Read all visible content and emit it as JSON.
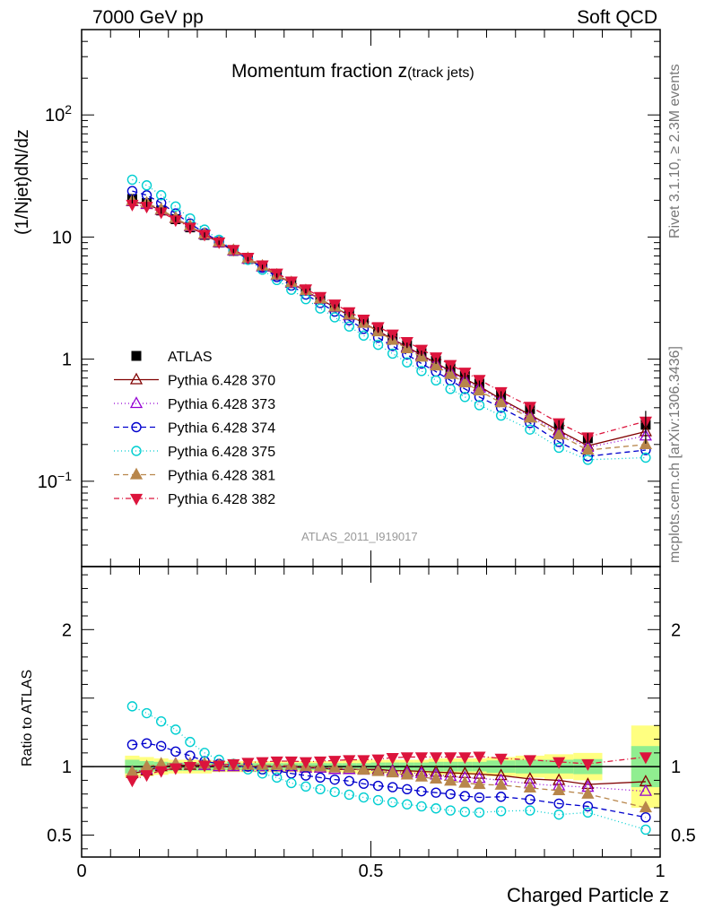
{
  "header": {
    "left": "7000 GeV pp",
    "right": "Soft QCD",
    "side_top": "Rivet 3.1.10, ≥ 2.3M events",
    "side_bottom": "mcplots.cern.ch [arXiv:1306.3436]"
  },
  "chart_data": [
    {
      "type": "line",
      "title": "Momentum fraction z",
      "title_sub": "(track jets)",
      "analysis_label": "ATLAS_2011_I919017",
      "ylabel": "(1/Njet)dN/dz",
      "yscale": "log",
      "ylim": [
        0.02,
        500
      ],
      "xlim": [
        0,
        1
      ],
      "ytick_labels": [
        "10^-1",
        "1",
        "10",
        "10^2"
      ],
      "legend_position": "left-middle",
      "x": [
        0.0875,
        0.1125,
        0.1375,
        0.1625,
        0.1875,
        0.2125,
        0.2375,
        0.2625,
        0.2875,
        0.3125,
        0.3375,
        0.3625,
        0.3875,
        0.4125,
        0.4375,
        0.4625,
        0.4875,
        0.5125,
        0.5375,
        0.5625,
        0.5875,
        0.6125,
        0.6375,
        0.6625,
        0.6875,
        0.725,
        0.775,
        0.825,
        0.875,
        0.975
      ],
      "series": [
        {
          "name": "ATLAS",
          "color": "#000000",
          "marker": "square-filled",
          "dash": "none",
          "values": [
            20.5,
            19.0,
            16.5,
            14.0,
            12.0,
            10.4,
            9.0,
            7.7,
            6.6,
            5.7,
            4.85,
            4.2,
            3.62,
            3.12,
            2.7,
            2.32,
            2.02,
            1.74,
            1.5,
            1.3,
            1.12,
            0.97,
            0.84,
            0.73,
            0.63,
            0.51,
            0.39,
            0.29,
            0.225,
            0.29
          ],
          "err_band": [
            0.08,
            0.07,
            0.06,
            0.05,
            0.05,
            0.05,
            0.04,
            0.04,
            0.04,
            0.04,
            0.04,
            0.04,
            0.04,
            0.04,
            0.04,
            0.05,
            0.05,
            0.05,
            0.05,
            0.05,
            0.05,
            0.06,
            0.06,
            0.06,
            0.06,
            0.07,
            0.08,
            0.09,
            0.1,
            0.3
          ]
        },
        {
          "name": "Pythia 6.428 370",
          "color": "#800000",
          "marker": "triangle-up-open",
          "dash": "none",
          "values": [
            19.5,
            18.5,
            16.6,
            14.2,
            12.2,
            10.5,
            9.0,
            7.7,
            6.6,
            5.7,
            4.85,
            4.2,
            3.6,
            3.1,
            2.65,
            2.28,
            1.98,
            1.7,
            1.46,
            1.26,
            1.08,
            0.93,
            0.8,
            0.69,
            0.6,
            0.47,
            0.35,
            0.26,
            0.195,
            0.255
          ]
        },
        {
          "name": "Pythia 6.428 373",
          "color": "#9400d3",
          "marker": "triangle-up-open",
          "dash": "1,3",
          "values": [
            19.6,
            18.6,
            16.7,
            14.3,
            12.2,
            10.5,
            9.0,
            7.7,
            6.6,
            5.7,
            4.85,
            4.2,
            3.6,
            3.1,
            2.65,
            2.27,
            1.97,
            1.69,
            1.45,
            1.24,
            1.06,
            0.91,
            0.78,
            0.67,
            0.58,
            0.46,
            0.34,
            0.25,
            0.19,
            0.235
          ]
        },
        {
          "name": "Pythia 6.428 374",
          "color": "#0000cd",
          "marker": "circle-open",
          "dash": "6,4",
          "values": [
            23.8,
            22.0,
            19.0,
            15.6,
            12.9,
            10.8,
            9.2,
            7.8,
            6.6,
            5.6,
            4.7,
            4.0,
            3.38,
            2.88,
            2.45,
            2.08,
            1.77,
            1.5,
            1.28,
            1.09,
            0.92,
            0.79,
            0.67,
            0.57,
            0.49,
            0.4,
            0.3,
            0.21,
            0.16,
            0.18
          ]
        },
        {
          "name": "Pythia 6.428 375",
          "color": "#00ced1",
          "marker": "circle-open",
          "dash": "1,3",
          "values": [
            29.5,
            26.5,
            22.0,
            17.8,
            14.2,
            11.5,
            9.5,
            7.85,
            6.5,
            5.4,
            4.45,
            3.7,
            3.1,
            2.6,
            2.2,
            1.85,
            1.56,
            1.31,
            1.11,
            0.94,
            0.8,
            0.67,
            0.57,
            0.49,
            0.42,
            0.345,
            0.265,
            0.188,
            0.15,
            0.156
          ]
        },
        {
          "name": "Pythia 6.428 381",
          "color": "#b8864b",
          "marker": "triangle-up-filled",
          "dash": "6,4",
          "values": [
            19.8,
            19.0,
            16.8,
            14.3,
            12.3,
            10.6,
            9.1,
            7.8,
            6.7,
            5.8,
            4.9,
            4.25,
            3.65,
            3.12,
            2.67,
            2.3,
            1.97,
            1.68,
            1.43,
            1.22,
            1.04,
            0.88,
            0.75,
            0.64,
            0.55,
            0.44,
            0.33,
            0.24,
            0.18,
            0.2
          ]
        },
        {
          "name": "Pythia 6.428 382",
          "color": "#dc143c",
          "marker": "triangle-down-filled",
          "dash": "6,3,1,3",
          "values": [
            18.5,
            17.8,
            16.0,
            13.8,
            12.0,
            10.5,
            9.1,
            7.9,
            6.8,
            5.9,
            5.05,
            4.35,
            3.75,
            3.25,
            2.82,
            2.44,
            2.12,
            1.84,
            1.6,
            1.39,
            1.2,
            1.04,
            0.9,
            0.78,
            0.68,
            0.54,
            0.41,
            0.3,
            0.23,
            0.31
          ]
        }
      ]
    },
    {
      "type": "line",
      "ylabel": "Ratio to ATLAS",
      "xlabel": "Charged Particle z",
      "ylim": [
        0.34,
        2.46
      ],
      "xlim": [
        0,
        1
      ],
      "ytick_labels": [
        "0.5",
        "1",
        "2"
      ],
      "xtick_labels": [
        "0",
        "0.5",
        "1"
      ],
      "x": [
        0.0875,
        0.1125,
        0.1375,
        0.1625,
        0.1875,
        0.2125,
        0.2375,
        0.2625,
        0.2875,
        0.3125,
        0.3375,
        0.3625,
        0.3875,
        0.4125,
        0.4375,
        0.4625,
        0.4875,
        0.5125,
        0.5375,
        0.5625,
        0.5875,
        0.6125,
        0.6375,
        0.6625,
        0.6875,
        0.725,
        0.775,
        0.825,
        0.875,
        0.975
      ],
      "band": {
        "stat_color": "#90ee90",
        "syst_color": "#ffff80",
        "green_halfwidth": [
          0.05,
          0.04,
          0.035,
          0.03,
          0.03,
          0.03,
          0.025,
          0.025,
          0.025,
          0.025,
          0.025,
          0.025,
          0.025,
          0.025,
          0.025,
          0.025,
          0.025,
          0.03,
          0.03,
          0.03,
          0.03,
          0.035,
          0.035,
          0.035,
          0.035,
          0.045,
          0.05,
          0.05,
          0.055,
          0.15
        ],
        "yellow_halfwidth": [
          0.08,
          0.07,
          0.06,
          0.05,
          0.05,
          0.05,
          0.04,
          0.04,
          0.04,
          0.04,
          0.04,
          0.04,
          0.04,
          0.04,
          0.04,
          0.05,
          0.05,
          0.05,
          0.05,
          0.05,
          0.05,
          0.06,
          0.06,
          0.06,
          0.06,
          0.07,
          0.08,
          0.09,
          0.1,
          0.3
        ]
      },
      "series": [
        {
          "name": "Pythia 6.428 370",
          "values": [
            0.95,
            0.97,
            1.0,
            1.01,
            1.01,
            1.01,
            1.0,
            1.0,
            1.0,
            1.0,
            1.0,
            1.0,
            0.99,
            0.99,
            0.98,
            0.98,
            0.98,
            0.98,
            0.97,
            0.97,
            0.965,
            0.96,
            0.955,
            0.95,
            0.945,
            0.935,
            0.91,
            0.9,
            0.87,
            0.89
          ]
        },
        {
          "name": "Pythia 6.428 373",
          "values": [
            0.96,
            0.98,
            1.01,
            1.02,
            1.02,
            1.01,
            1.0,
            1.0,
            1.0,
            1.0,
            1.0,
            1.0,
            0.99,
            0.99,
            0.98,
            0.98,
            0.975,
            0.97,
            0.965,
            0.955,
            0.95,
            0.94,
            0.93,
            0.92,
            0.915,
            0.9,
            0.875,
            0.86,
            0.85,
            0.82
          ]
        },
        {
          "name": "Pythia 6.428 374",
          "values": [
            1.16,
            1.17,
            1.15,
            1.11,
            1.08,
            1.04,
            1.02,
            1.01,
            1.0,
            0.98,
            0.97,
            0.95,
            0.935,
            0.92,
            0.905,
            0.895,
            0.875,
            0.86,
            0.85,
            0.835,
            0.82,
            0.81,
            0.8,
            0.785,
            0.775,
            0.78,
            0.76,
            0.73,
            0.71,
            0.63
          ]
        },
        {
          "name": "Pythia 6.428 375",
          "values": [
            1.44,
            1.39,
            1.33,
            1.27,
            1.18,
            1.1,
            1.05,
            1.02,
            0.98,
            0.95,
            0.92,
            0.88,
            0.855,
            0.835,
            0.815,
            0.795,
            0.775,
            0.755,
            0.74,
            0.725,
            0.71,
            0.695,
            0.68,
            0.67,
            0.665,
            0.675,
            0.68,
            0.65,
            0.665,
            0.54
          ]
        },
        {
          "name": "Pythia 6.428 381",
          "values": [
            0.96,
            1.0,
            1.02,
            1.02,
            1.02,
            1.02,
            1.01,
            1.01,
            1.01,
            1.01,
            1.01,
            1.01,
            1.0,
            1.0,
            0.99,
            0.99,
            0.975,
            0.965,
            0.955,
            0.94,
            0.925,
            0.91,
            0.895,
            0.88,
            0.87,
            0.865,
            0.845,
            0.825,
            0.8,
            0.7
          ]
        },
        {
          "name": "Pythia 6.428 382",
          "values": [
            0.9,
            0.94,
            0.97,
            0.99,
            1.0,
            1.01,
            1.01,
            1.02,
            1.03,
            1.035,
            1.04,
            1.04,
            1.035,
            1.04,
            1.045,
            1.05,
            1.05,
            1.055,
            1.065,
            1.07,
            1.07,
            1.07,
            1.07,
            1.07,
            1.075,
            1.06,
            1.05,
            1.035,
            1.02,
            1.07
          ]
        }
      ]
    }
  ]
}
